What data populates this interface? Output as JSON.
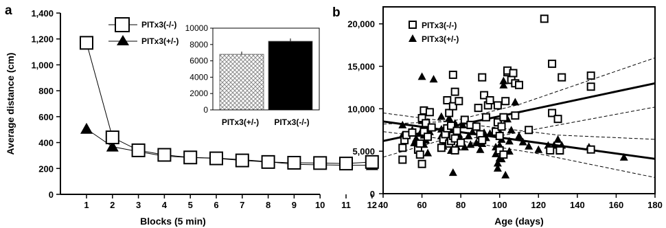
{
  "chart_data": [
    {
      "panel_label": "a",
      "type": "line",
      "xlabel": "Blocks (5 min)",
      "ylabel": "Average distance (cm)",
      "x": [
        1,
        2,
        3,
        4,
        5,
        6,
        7,
        8,
        9,
        10,
        11,
        12
      ],
      "xticks": [
        "1",
        "2",
        "3",
        "4",
        "5",
        "6",
        "7",
        "8",
        "9",
        "10",
        "11",
        "12"
      ],
      "ylim": [
        0,
        1400
      ],
      "yticks": [
        "0",
        "200",
        "400",
        "600",
        "800",
        "1,000",
        "1,200",
        "1,400"
      ],
      "legend_position": "top-left",
      "series": [
        {
          "name": "PITx3(-/-)",
          "marker": "open-square",
          "values": [
            1170,
            440,
            340,
            305,
            285,
            278,
            262,
            250,
            244,
            242,
            238,
            250
          ]
        },
        {
          "name": "PITx3(+/-)",
          "marker": "filled-triangle",
          "values": [
            505,
            368,
            330,
            295,
            285,
            280,
            268,
            252,
            232,
            228,
            225,
            225
          ]
        }
      ],
      "inset": {
        "type": "bar",
        "categories": [
          "PITx3(+/-)",
          "PITx3(-/-)"
        ],
        "values": [
          6800,
          8400
        ],
        "ylim": [
          0,
          10000
        ],
        "yticks": [
          "0",
          "2000",
          "4000",
          "6000",
          "8000",
          "10000"
        ],
        "fills": [
          "crosshatch",
          "#000000"
        ]
      }
    },
    {
      "panel_label": "b",
      "type": "scatter",
      "xlabel": "Age (days)",
      "ylabel": "",
      "xlim": [
        40,
        180
      ],
      "xticks": [
        "40",
        "60",
        "80",
        "100",
        "120",
        "140",
        "160",
        "180"
      ],
      "ylim": [
        0,
        22000
      ],
      "yticks": [
        "0",
        "5,000",
        "10,000",
        "15,000",
        "20,000"
      ],
      "legend_position": "top-left",
      "series": [
        {
          "name": "PITx3(-/-)",
          "marker": "open-square",
          "fit": [
            [
              40,
              6200
            ],
            [
              180,
              13000
            ]
          ],
          "ci_upper": [
            [
              40,
              8200
            ],
            [
              75,
              8500
            ],
            [
              110,
              10500
            ],
            [
              180,
              16000
            ]
          ],
          "ci_lower": [
            [
              40,
              4300
            ],
            [
              70,
              6300
            ],
            [
              100,
              6800
            ],
            [
              180,
              10200
            ]
          ],
          "points": [
            [
              50,
              4000
            ],
            [
              50,
              5400
            ],
            [
              51,
              6300
            ],
            [
              52,
              6900
            ],
            [
              55,
              7200
            ],
            [
              58,
              5200
            ],
            [
              59,
              4600
            ],
            [
              59,
              5900
            ],
            [
              60,
              3500
            ],
            [
              60,
              8900
            ],
            [
              61,
              7300
            ],
            [
              61,
              9800
            ],
            [
              62,
              8300
            ],
            [
              63,
              6700
            ],
            [
              64,
              9600
            ],
            [
              65,
              7800
            ],
            [
              70,
              5400
            ],
            [
              71,
              6400
            ],
            [
              72,
              7000
            ],
            [
              73,
              7700
            ],
            [
              73,
              11000
            ],
            [
              74,
              5900
            ],
            [
              74,
              9500
            ],
            [
              75,
              6200
            ],
            [
              75,
              8000
            ],
            [
              76,
              6800
            ],
            [
              76,
              10300
            ],
            [
              76,
              14000
            ],
            [
              77,
              5100
            ],
            [
              77,
              6500
            ],
            [
              77,
              12000
            ],
            [
              78,
              7400
            ],
            [
              79,
              10900
            ],
            [
              80,
              6000
            ],
            [
              82,
              8700
            ],
            [
              85,
              8100
            ],
            [
              88,
              7900
            ],
            [
              89,
              10100
            ],
            [
              90,
              7000
            ],
            [
              91,
              6300
            ],
            [
              91,
              13700
            ],
            [
              92,
              11600
            ],
            [
              93,
              9000
            ],
            [
              94,
              10400
            ],
            [
              95,
              11000
            ],
            [
              98,
              7300
            ],
            [
              99,
              8400
            ],
            [
              99,
              10400
            ],
            [
              100,
              5100
            ],
            [
              100,
              6800
            ],
            [
              101,
              7900
            ],
            [
              102,
              4600
            ],
            [
              102,
              9000
            ],
            [
              103,
              10900
            ],
            [
              104,
              14300
            ],
            [
              104,
              14500
            ],
            [
              106,
              13400
            ],
            [
              107,
              14200
            ],
            [
              108,
              13000
            ],
            [
              108,
              9200
            ],
            [
              110,
              12800
            ],
            [
              115,
              7500
            ],
            [
              123,
              20600
            ],
            [
              126,
              5100
            ],
            [
              127,
              9500
            ],
            [
              127,
              15300
            ],
            [
              130,
              8800
            ],
            [
              131,
              5100
            ],
            [
              132,
              13700
            ],
            [
              147,
              5200
            ],
            [
              147,
              12600
            ],
            [
              147,
              13900
            ]
          ]
        },
        {
          "name": "PITx3(+/-)",
          "marker": "filled-triangle",
          "fit": [
            [
              40,
              8500
            ],
            [
              180,
              4100
            ]
          ],
          "ci_upper": [
            [
              40,
              9500
            ],
            [
              90,
              8000
            ],
            [
              130,
              6900
            ],
            [
              180,
              6400
            ]
          ],
          "ci_lower": [
            [
              40,
              7300
            ],
            [
              80,
              6200
            ],
            [
              120,
              4700
            ],
            [
              180,
              1900
            ]
          ],
          "points": [
            [
              50,
              8100
            ],
            [
              50,
              6900
            ],
            [
              55,
              7500
            ],
            [
              56,
              6000
            ],
            [
              57,
              6500
            ],
            [
              58,
              5100
            ],
            [
              59,
              7100
            ],
            [
              60,
              13800
            ],
            [
              60,
              8600
            ],
            [
              61,
              5800
            ],
            [
              61,
              6900
            ],
            [
              62,
              6300
            ],
            [
              63,
              4800
            ],
            [
              64,
              7300
            ],
            [
              66,
              13500
            ],
            [
              70,
              9100
            ],
            [
              70,
              7600
            ],
            [
              70,
              6800
            ],
            [
              71,
              5600
            ],
            [
              72,
              6200
            ],
            [
              73,
              7800
            ],
            [
              74,
              8900
            ],
            [
              75,
              7300
            ],
            [
              75,
              5100
            ],
            [
              76,
              2500
            ],
            [
              76,
              6600
            ],
            [
              77,
              8300
            ],
            [
              78,
              5500
            ],
            [
              79,
              7000
            ],
            [
              80,
              6400
            ],
            [
              81,
              8100
            ],
            [
              82,
              5500
            ],
            [
              84,
              6800
            ],
            [
              85,
              8000
            ],
            [
              85,
              5800
            ],
            [
              86,
              7300
            ],
            [
              88,
              6000
            ],
            [
              90,
              5200
            ],
            [
              90,
              6800
            ],
            [
              91,
              5900
            ],
            [
              92,
              7200
            ],
            [
              93,
              6600
            ],
            [
              95,
              7100
            ],
            [
              98,
              5500
            ],
            [
              98,
              4700
            ],
            [
              99,
              3600
            ],
            [
              99,
              3000
            ],
            [
              100,
              4200
            ],
            [
              100,
              5700
            ],
            [
              100,
              7300
            ],
            [
              101,
              6400
            ],
            [
              101,
              4100
            ],
            [
              102,
              12800
            ],
            [
              102,
              13300
            ],
            [
              103,
              2200
            ],
            [
              104,
              8800
            ],
            [
              105,
              5000
            ],
            [
              105,
              6200
            ],
            [
              106,
              7500
            ],
            [
              108,
              10800
            ],
            [
              110,
              6800
            ],
            [
              112,
              6100
            ],
            [
              115,
              5600
            ],
            [
              120,
              5200
            ],
            [
              125,
              5700
            ],
            [
              128,
              5700
            ],
            [
              130,
              6400
            ],
            [
              131,
              5000
            ],
            [
              132,
              5700
            ],
            [
              146,
              5500
            ],
            [
              164,
              4300
            ]
          ]
        }
      ]
    }
  ]
}
